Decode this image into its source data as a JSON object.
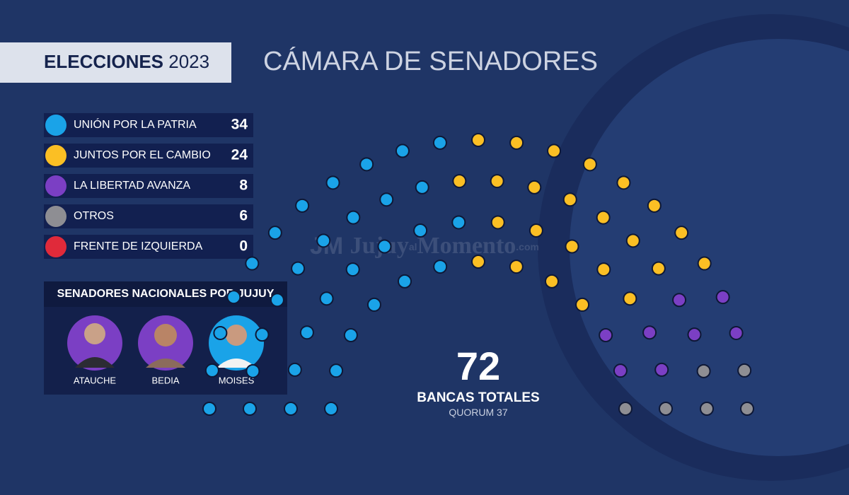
{
  "header": {
    "badge_bold": "ELECCIONES",
    "badge_year": "2023",
    "title": "CÁMARA DE SENADORES"
  },
  "watermark": [
    "JM",
    "Jujuy",
    "al",
    "Momento",
    ".com"
  ],
  "chart_data": {
    "type": "parliament",
    "categories": [
      "UNIÓN POR LA PATRIA",
      "JUNTOS POR EL CAMBIO",
      "LA LIBERTAD AVANZA",
      "OTROS",
      "FRENTE DE IZQUIERDA"
    ],
    "values": [
      34,
      24,
      8,
      6,
      0
    ],
    "colors": [
      "#1aa3e8",
      "#fbbf24",
      "#7b3fc4",
      "#8e8e93",
      "#e02a3a"
    ],
    "total": 72,
    "total_label": "BANCAS TOTALES",
    "quorum_label": "QUORUM",
    "quorum": 37
  },
  "senators": {
    "title": "SENADORES NACIONALES POR JUJUY",
    "names": [
      "ATAUCHE",
      "BEDIA",
      "MOISES"
    ]
  }
}
